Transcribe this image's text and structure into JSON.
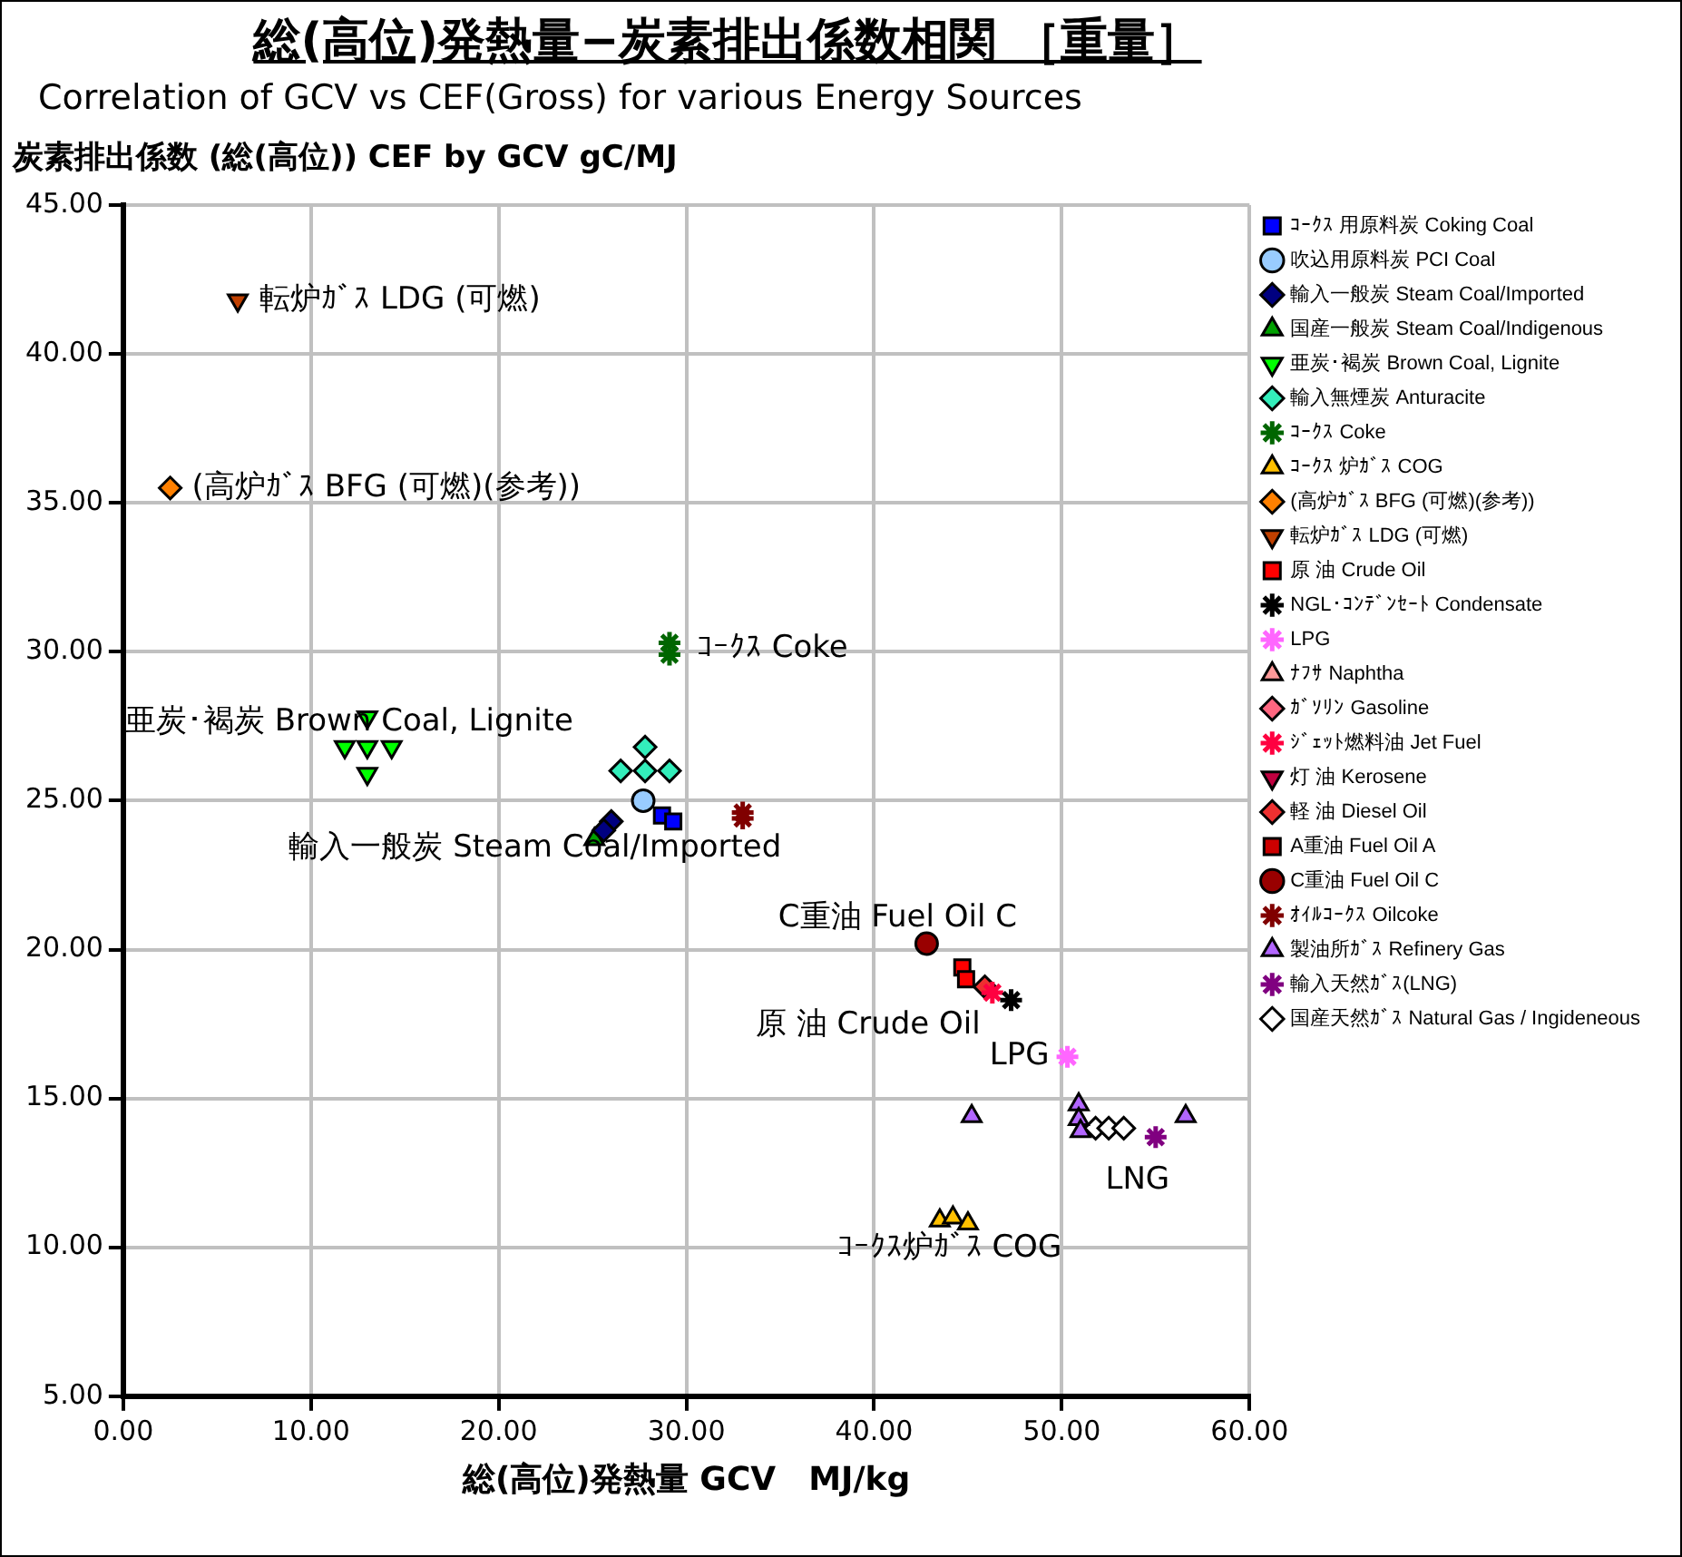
{
  "chart_data": {
    "type": "scatter",
    "title": "総(高位)発熱量−炭素排出係数相関 ［重量］",
    "subtitle": "Correlation of GCV vs CEF(Gross) for various Energy Sources",
    "ylabel": "炭素排出係数 (総(高位)) CEF by GCV gC/MJ",
    "xlabel": "総(高位)発熱量 GCV　MJ/kg",
    "xlim": [
      0,
      60
    ],
    "xticks": [
      {
        "value": 0,
        "label": "0.00"
      },
      {
        "value": 10,
        "label": "10.00"
      },
      {
        "value": 20,
        "label": "20.00"
      },
      {
        "value": 30,
        "label": "30.00"
      },
      {
        "value": 40,
        "label": "40.00"
      },
      {
        "value": 50,
        "label": "50.00"
      },
      {
        "value": 60,
        "label": "60.00"
      }
    ],
    "ylim": [
      5,
      45
    ],
    "yticks": [
      {
        "value": 5,
        "label": "5.00"
      },
      {
        "value": 10,
        "label": "10.00"
      },
      {
        "value": 15,
        "label": "15.00"
      },
      {
        "value": 20,
        "label": "20.00"
      },
      {
        "value": 25,
        "label": "25.00"
      },
      {
        "value": 30,
        "label": "30.00"
      },
      {
        "value": 35,
        "label": "35.00"
      },
      {
        "value": 40,
        "label": "40.00"
      },
      {
        "value": 45,
        "label": "45.00"
      }
    ],
    "grid": true,
    "legend": "right",
    "series": [
      {
        "name": "ｺｰｸｽ 用原料炭 Coking Coal",
        "color": "#0000ff",
        "marker": "square",
        "x": [
          28.7,
          29.3
        ],
        "values": [
          24.5,
          24.3
        ]
      },
      {
        "name": "吹込用原料炭 PCI Coal",
        "color": "#99ccff",
        "marker": "circle",
        "x": [
          27.7
        ],
        "values": [
          25.0
        ]
      },
      {
        "name": "輸入一般炭 Steam Coal/Imported",
        "color": "#000080",
        "marker": "diamond",
        "x": [
          26.0,
          25.6
        ],
        "values": [
          24.3,
          24.0
        ]
      },
      {
        "name": "国産一般炭 Steam Coal/Indigenous",
        "color": "#00a000",
        "marker": "triangle",
        "x": [
          25.1
        ],
        "values": [
          23.7
        ]
      },
      {
        "name": "亜炭･褐炭 Brown Coal, Lignite",
        "color": "#00ff00",
        "marker": "triangle-down",
        "x": [
          13.0,
          11.8,
          13.0,
          14.3,
          13.0
        ],
        "values": [
          27.8,
          26.8,
          26.8,
          26.8,
          25.9
        ]
      },
      {
        "name": "輸入無煙炭 Anturacite",
        "color": "#33eebb",
        "marker": "diamond",
        "x": [
          27.8,
          26.5,
          27.8,
          29.1
        ],
        "values": [
          26.8,
          26.0,
          26.0,
          26.0
        ]
      },
      {
        "name": "ｺｰｸｽ Coke",
        "color": "#006600",
        "marker": "cross",
        "x": [
          29.1,
          29.1
        ],
        "values": [
          30.3,
          29.9
        ]
      },
      {
        "name": "ｺｰｸｽ 炉ｶﾞｽ COG",
        "color": "#ffc000",
        "marker": "triangle",
        "x": [
          43.5,
          44.2,
          45.0
        ],
        "values": [
          10.9,
          11.0,
          10.8
        ]
      },
      {
        "name": "(高炉ｶﾞｽ BFG (可燃)(参考))",
        "color": "#ff8000",
        "marker": "diamond",
        "x": [
          2.5
        ],
        "values": [
          35.5
        ]
      },
      {
        "name": "転炉ｶﾞｽ LDG (可燃)",
        "color": "#c04000",
        "marker": "triangle-down",
        "x": [
          6.1
        ],
        "values": [
          41.8
        ]
      },
      {
        "name": "原 油 Crude Oil",
        "color": "#ff0000",
        "marker": "square",
        "x": [
          44.7,
          44.9
        ],
        "values": [
          19.4,
          19.0
        ]
      },
      {
        "name": "NGL･ｺﾝﾃﾞﾝｾｰﾄ Condensate",
        "color": "#000000",
        "marker": "cross",
        "x": [
          47.3
        ],
        "values": [
          18.3
        ]
      },
      {
        "name": "LPG",
        "color": "#ff66ff",
        "marker": "cross",
        "x": [
          50.3
        ],
        "values": [
          16.4
        ]
      },
      {
        "name": "ﾅﾌｻ Naphtha",
        "color": "#ff9999",
        "marker": "triangle"
      },
      {
        "name": "ｶﾞｿﾘﾝ Gasoline",
        "color": "#ff6680",
        "marker": "diamond"
      },
      {
        "name": "ｼﾞｪｯﾄ燃料油 Jet Fuel",
        "color": "#ff0040",
        "marker": "cross",
        "x": [
          46.3
        ],
        "values": [
          18.55
        ]
      },
      {
        "name": "灯 油 Kerosene",
        "color": "#c00040",
        "marker": "triangle-down"
      },
      {
        "name": "軽 油 Diesel Oil",
        "color": "#ee3030",
        "marker": "diamond",
        "x": [
          45.9
        ],
        "values": [
          18.75
        ]
      },
      {
        "name": "A重油 Fuel Oil A",
        "color": "#cc0000",
        "marker": "square"
      },
      {
        "name": "C重油 Fuel Oil C",
        "color": "#990000",
        "marker": "circle",
        "x": [
          42.8
        ],
        "values": [
          20.2
        ]
      },
      {
        "name": "ｵｲﾙｺｰｸｽ Oilcoke",
        "color": "#800000",
        "marker": "cross",
        "x": [
          33.0,
          33.0
        ],
        "values": [
          24.6,
          24.4
        ]
      },
      {
        "name": "製油所ｶﾞｽ Refinery Gas",
        "color": "#b266ff",
        "marker": "triangle",
        "x": [
          45.2,
          50.9,
          50.9,
          51.0,
          56.6
        ],
        "values": [
          14.4,
          14.8,
          14.3,
          13.9,
          14.4
        ]
      },
      {
        "name": "輸入天然ｶﾞｽ(LNG)",
        "color": "#800080",
        "marker": "cross",
        "x": [
          55.0
        ],
        "values": [
          13.7
        ]
      },
      {
        "name": "国産天然ｶﾞｽ Natural Gas / Ingideneous",
        "color": "#ffffff",
        "marker": "diamond",
        "x": [
          51.8,
          52.5,
          53.3
        ],
        "values": [
          14.0,
          14.0,
          14.0
        ]
      }
    ],
    "annotations": [
      {
        "text": "転炉ｶﾞｽ LDG (可燃)",
        "x": 6.1,
        "y": 41.8
      },
      {
        "text": "(高炉ｶﾞｽ BFG (可燃)(参考))",
        "x": 2.5,
        "y": 35.5
      },
      {
        "text": "ｺｰｸｽ Coke",
        "x": 29.1,
        "y": 30.1
      },
      {
        "text": "亜炭･褐炭 Brown Coal, Lignite",
        "x": 13.0,
        "y": 27.8
      },
      {
        "text": "輸入一般炭 Steam Coal/Imported",
        "x": 26.0,
        "y": 24.3
      },
      {
        "text": "C重油 Fuel Oil C",
        "x": 42.8,
        "y": 20.2
      },
      {
        "text": "原 油 Crude Oil",
        "x": 44.7,
        "y": 19.4
      },
      {
        "text": "LPG",
        "x": 50.3,
        "y": 16.4
      },
      {
        "text": "LNG",
        "x": 55.0,
        "y": 13.7
      },
      {
        "text": "ｺｰｸｽ炉ｶﾞｽ COG",
        "x": 44.2,
        "y": 11.0
      }
    ]
  }
}
